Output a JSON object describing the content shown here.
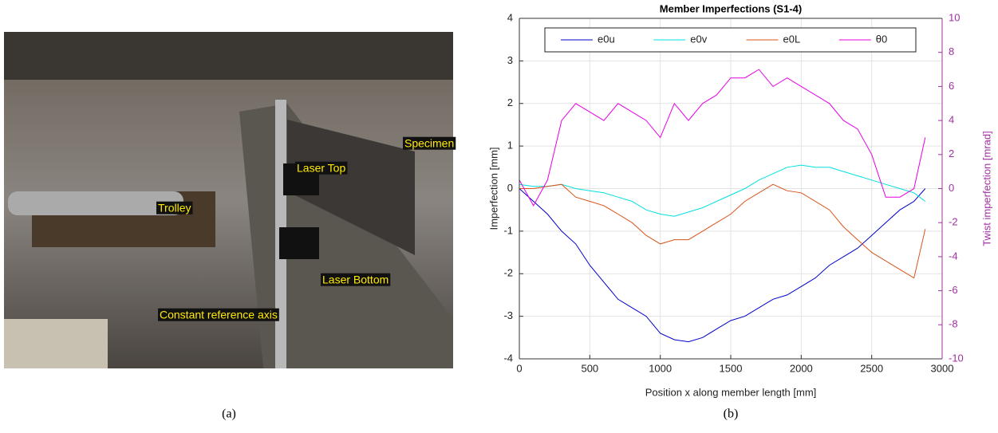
{
  "photo": {
    "labels": [
      "Specimen",
      "Laser Top",
      "Trolley",
      "Laser Bottom",
      "Constant reference axis"
    ]
  },
  "captions": [
    "(a)",
    "(b)"
  ],
  "chart_data": {
    "type": "line",
    "title": "Member Imperfections (S1-4)",
    "x_label": "Position x along member length [mm]",
    "y_label": "Imperfection [mm]",
    "y2_label": "Twist imperfection [mrad]",
    "x": [
      0,
      100,
      200,
      300,
      400,
      500,
      600,
      700,
      800,
      900,
      1000,
      1100,
      1200,
      1300,
      1400,
      1500,
      1600,
      1700,
      1800,
      1900,
      2000,
      2100,
      2200,
      2300,
      2400,
      2500,
      2600,
      2700,
      2800,
      2880
    ],
    "series": [
      {
        "name": "e0u",
        "color": "#0000cc",
        "values": [
          0,
          -0.3,
          -0.6,
          -1.0,
          -1.3,
          -1.8,
          -2.2,
          -2.6,
          -2.8,
          -3.0,
          -3.4,
          -3.55,
          -3.6,
          -3.5,
          -3.3,
          -3.1,
          -3.0,
          -2.8,
          -2.6,
          -2.5,
          -2.3,
          -2.1,
          -1.8,
          -1.6,
          -1.4,
          -1.1,
          -0.8,
          -0.5,
          -0.3,
          0
        ]
      },
      {
        "name": "e0v",
        "color": "#00e0e0",
        "values": [
          0.1,
          0.05,
          0.05,
          0.1,
          0.0,
          -0.05,
          -0.1,
          -0.2,
          -0.3,
          -0.5,
          -0.6,
          -0.65,
          -0.55,
          -0.45,
          -0.3,
          -0.15,
          0.0,
          0.2,
          0.35,
          0.5,
          0.55,
          0.5,
          0.5,
          0.4,
          0.3,
          0.2,
          0.1,
          0.0,
          -0.1,
          -0.3
        ]
      },
      {
        "name": "e0L",
        "color": "#d95319",
        "values": [
          0,
          0.0,
          0.05,
          0.1,
          -0.2,
          -0.3,
          -0.4,
          -0.6,
          -0.8,
          -1.1,
          -1.3,
          -1.2,
          -1.2,
          -1.0,
          -0.8,
          -0.6,
          -0.3,
          -0.1,
          0.1,
          -0.05,
          -0.1,
          -0.3,
          -0.5,
          -0.9,
          -1.2,
          -1.5,
          -1.7,
          -1.9,
          -2.1,
          -0.95
        ]
      },
      {
        "name": "θ0",
        "color": "#e600e6",
        "axis": "y2",
        "values": [
          0.5,
          -1,
          0.5,
          4,
          5,
          4.5,
          4,
          5,
          4.5,
          4,
          3,
          5,
          4,
          5,
          5.5,
          6.5,
          6.5,
          7,
          6,
          6.5,
          6,
          5.5,
          5,
          4,
          3.5,
          2,
          -0.5,
          -0.5,
          0,
          3
        ]
      }
    ],
    "xlim": [
      0,
      3000
    ],
    "xticks": [
      0,
      500,
      1000,
      1500,
      2000,
      2500,
      3000
    ],
    "ylim": [
      -4,
      4
    ],
    "yticks": [
      -4,
      -3,
      -2,
      -1,
      0,
      1,
      2,
      3,
      4
    ],
    "y2lim": [
      -10,
      10
    ],
    "y2ticks": [
      -10,
      -8,
      -6,
      -4,
      -2,
      0,
      2,
      4,
      6,
      8,
      10
    ],
    "y2_color": "#a030a0",
    "grid": true,
    "legend": "top"
  }
}
